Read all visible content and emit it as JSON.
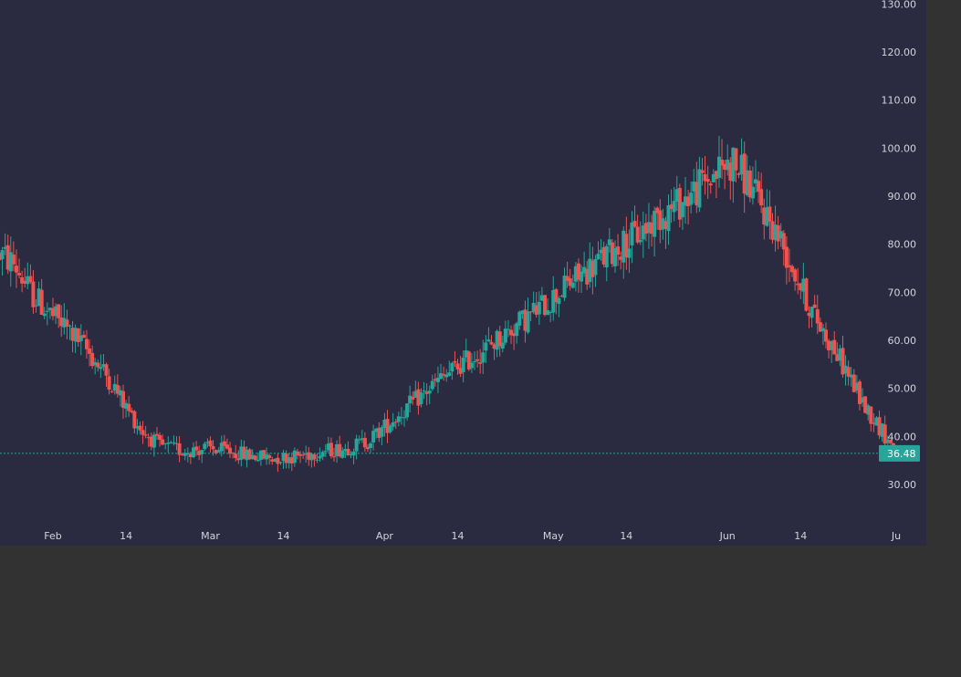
{
  "colors": {
    "background": "#2a2a40",
    "outer_background": "#323232",
    "up": "#26a69a",
    "down": "#ef5350",
    "axis_text": "#d1d4dc",
    "last_price_line": "#26a69a"
  },
  "chart_data": {
    "type": "candlestick",
    "title": "",
    "xlabel": "",
    "ylabel": "",
    "ylim": [
      25,
      130
    ],
    "y_ticks": [
      "30.00",
      "40.00",
      "50.00",
      "60.00",
      "70.00",
      "80.00",
      "90.00",
      "100.00",
      "110.00",
      "120.00",
      "130.00"
    ],
    "x_ticks": [
      {
        "label": "Feb",
        "day": 0
      },
      {
        "label": "14",
        "day": 13
      },
      {
        "label": "Mar",
        "day": 28
      },
      {
        "label": "14",
        "day": 41
      },
      {
        "label": "Apr",
        "day": 59
      },
      {
        "label": "14",
        "day": 72
      },
      {
        "label": "May",
        "day": 89
      },
      {
        "label": "14",
        "day": 102
      },
      {
        "label": "Jun",
        "day": 120
      },
      {
        "label": "14",
        "day": 133
      },
      {
        "label": "Ju",
        "day": 150
      }
    ],
    "last_price": "36.48",
    "last_price_value": 36.48,
    "first_day": -9.5,
    "day_step": 0.5,
    "series": [
      {
        "name": "",
        "control_points": [
          [
            -9.5,
            78
          ],
          [
            -7,
            76
          ],
          [
            -4,
            70
          ],
          [
            0,
            65
          ],
          [
            3,
            62
          ],
          [
            6,
            58
          ],
          [
            10,
            52
          ],
          [
            13,
            46
          ],
          [
            16,
            41
          ],
          [
            19,
            38
          ],
          [
            23,
            37
          ],
          [
            27,
            37.5
          ],
          [
            31,
            37
          ],
          [
            35,
            36
          ],
          [
            39,
            35.5
          ],
          [
            44,
            36
          ],
          [
            48,
            37
          ],
          [
            52,
            37.5
          ],
          [
            56,
            39
          ],
          [
            60,
            43
          ],
          [
            64,
            47
          ],
          [
            68,
            51
          ],
          [
            72,
            54.5
          ],
          [
            76,
            57.5
          ],
          [
            80,
            61
          ],
          [
            84,
            64.5
          ],
          [
            88,
            68
          ],
          [
            92,
            72
          ],
          [
            96,
            75.5
          ],
          [
            100,
            79
          ],
          [
            104,
            82
          ],
          [
            108,
            86
          ],
          [
            112,
            89
          ],
          [
            116,
            93
          ],
          [
            119,
            96
          ],
          [
            121,
            97
          ],
          [
            123,
            94
          ],
          [
            126,
            88
          ],
          [
            129,
            82
          ],
          [
            132,
            74
          ],
          [
            135,
            66
          ],
          [
            138,
            60
          ],
          [
            141,
            54
          ],
          [
            144,
            47
          ],
          [
            147,
            42
          ],
          [
            150,
            36.5
          ]
        ]
      }
    ]
  }
}
